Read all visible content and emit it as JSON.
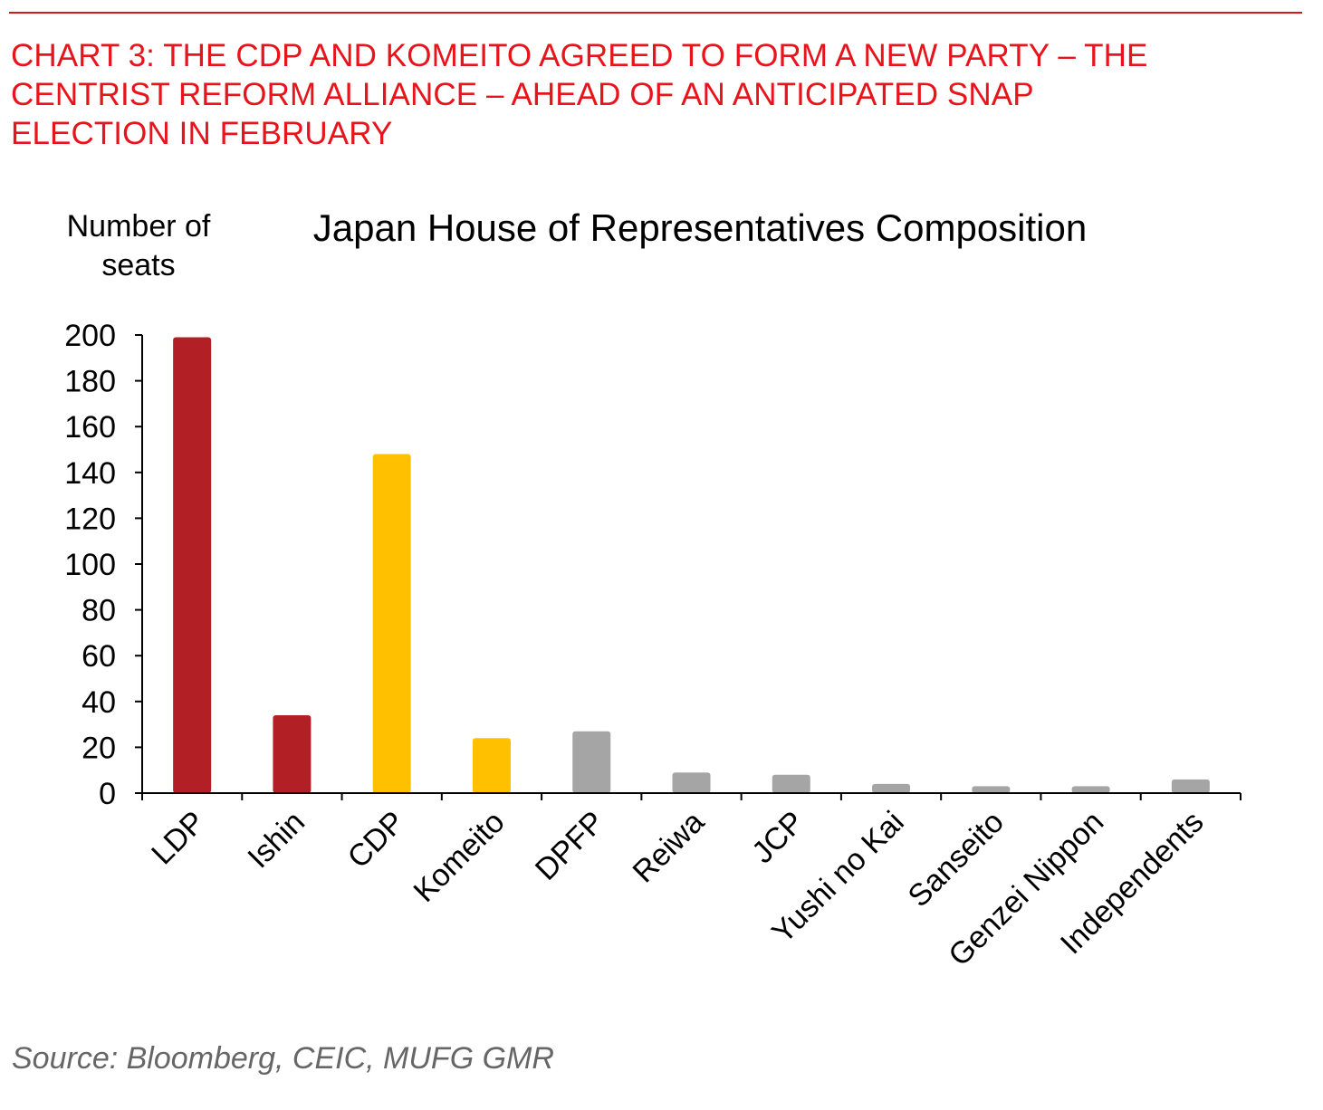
{
  "header": {
    "title_lines": [
      "CHART 3: THE CDP AND KOMEITO AGREED TO FORM A NEW PARTY – THE",
      "CENTRIST REFORM ALLIANCE – AHEAD OF AN ANTICIPATED SNAP",
      "ELECTION IN FEBRUARY"
    ]
  },
  "colors": {
    "title": "#e8141b",
    "rule": "#d7191c",
    "ldp_ishin": "#b22025",
    "cdp_komeito": "#ffc000",
    "others": "#a5a5a5",
    "axis": "#000000"
  },
  "chart_data": {
    "type": "bar",
    "title": "Japan House of Representatives Composition",
    "ylabel_lines": [
      "Number of",
      "seats"
    ],
    "xlabel": "",
    "ylim": [
      0,
      200
    ],
    "yticks": [
      0,
      20,
      40,
      60,
      80,
      100,
      120,
      140,
      160,
      180,
      200
    ],
    "categories": [
      "LDP",
      "Ishin",
      "CDP",
      "Komeito",
      "DPFP",
      "Reiwa",
      "JCP",
      "Yushi no Kai",
      "Sanseito",
      "Genzei Nippon",
      "Independents"
    ],
    "values": [
      199,
      34,
      148,
      24,
      27,
      9,
      8,
      4,
      3,
      3,
      6
    ],
    "bar_colors": [
      "#b22025",
      "#b22025",
      "#ffc000",
      "#ffc000",
      "#a5a5a5",
      "#a5a5a5",
      "#a5a5a5",
      "#a5a5a5",
      "#a5a5a5",
      "#a5a5a5",
      "#a5a5a5"
    ],
    "grid": false,
    "legend": "none"
  },
  "footer": {
    "source": "Source: Bloomberg, CEIC, MUFG GMR"
  }
}
